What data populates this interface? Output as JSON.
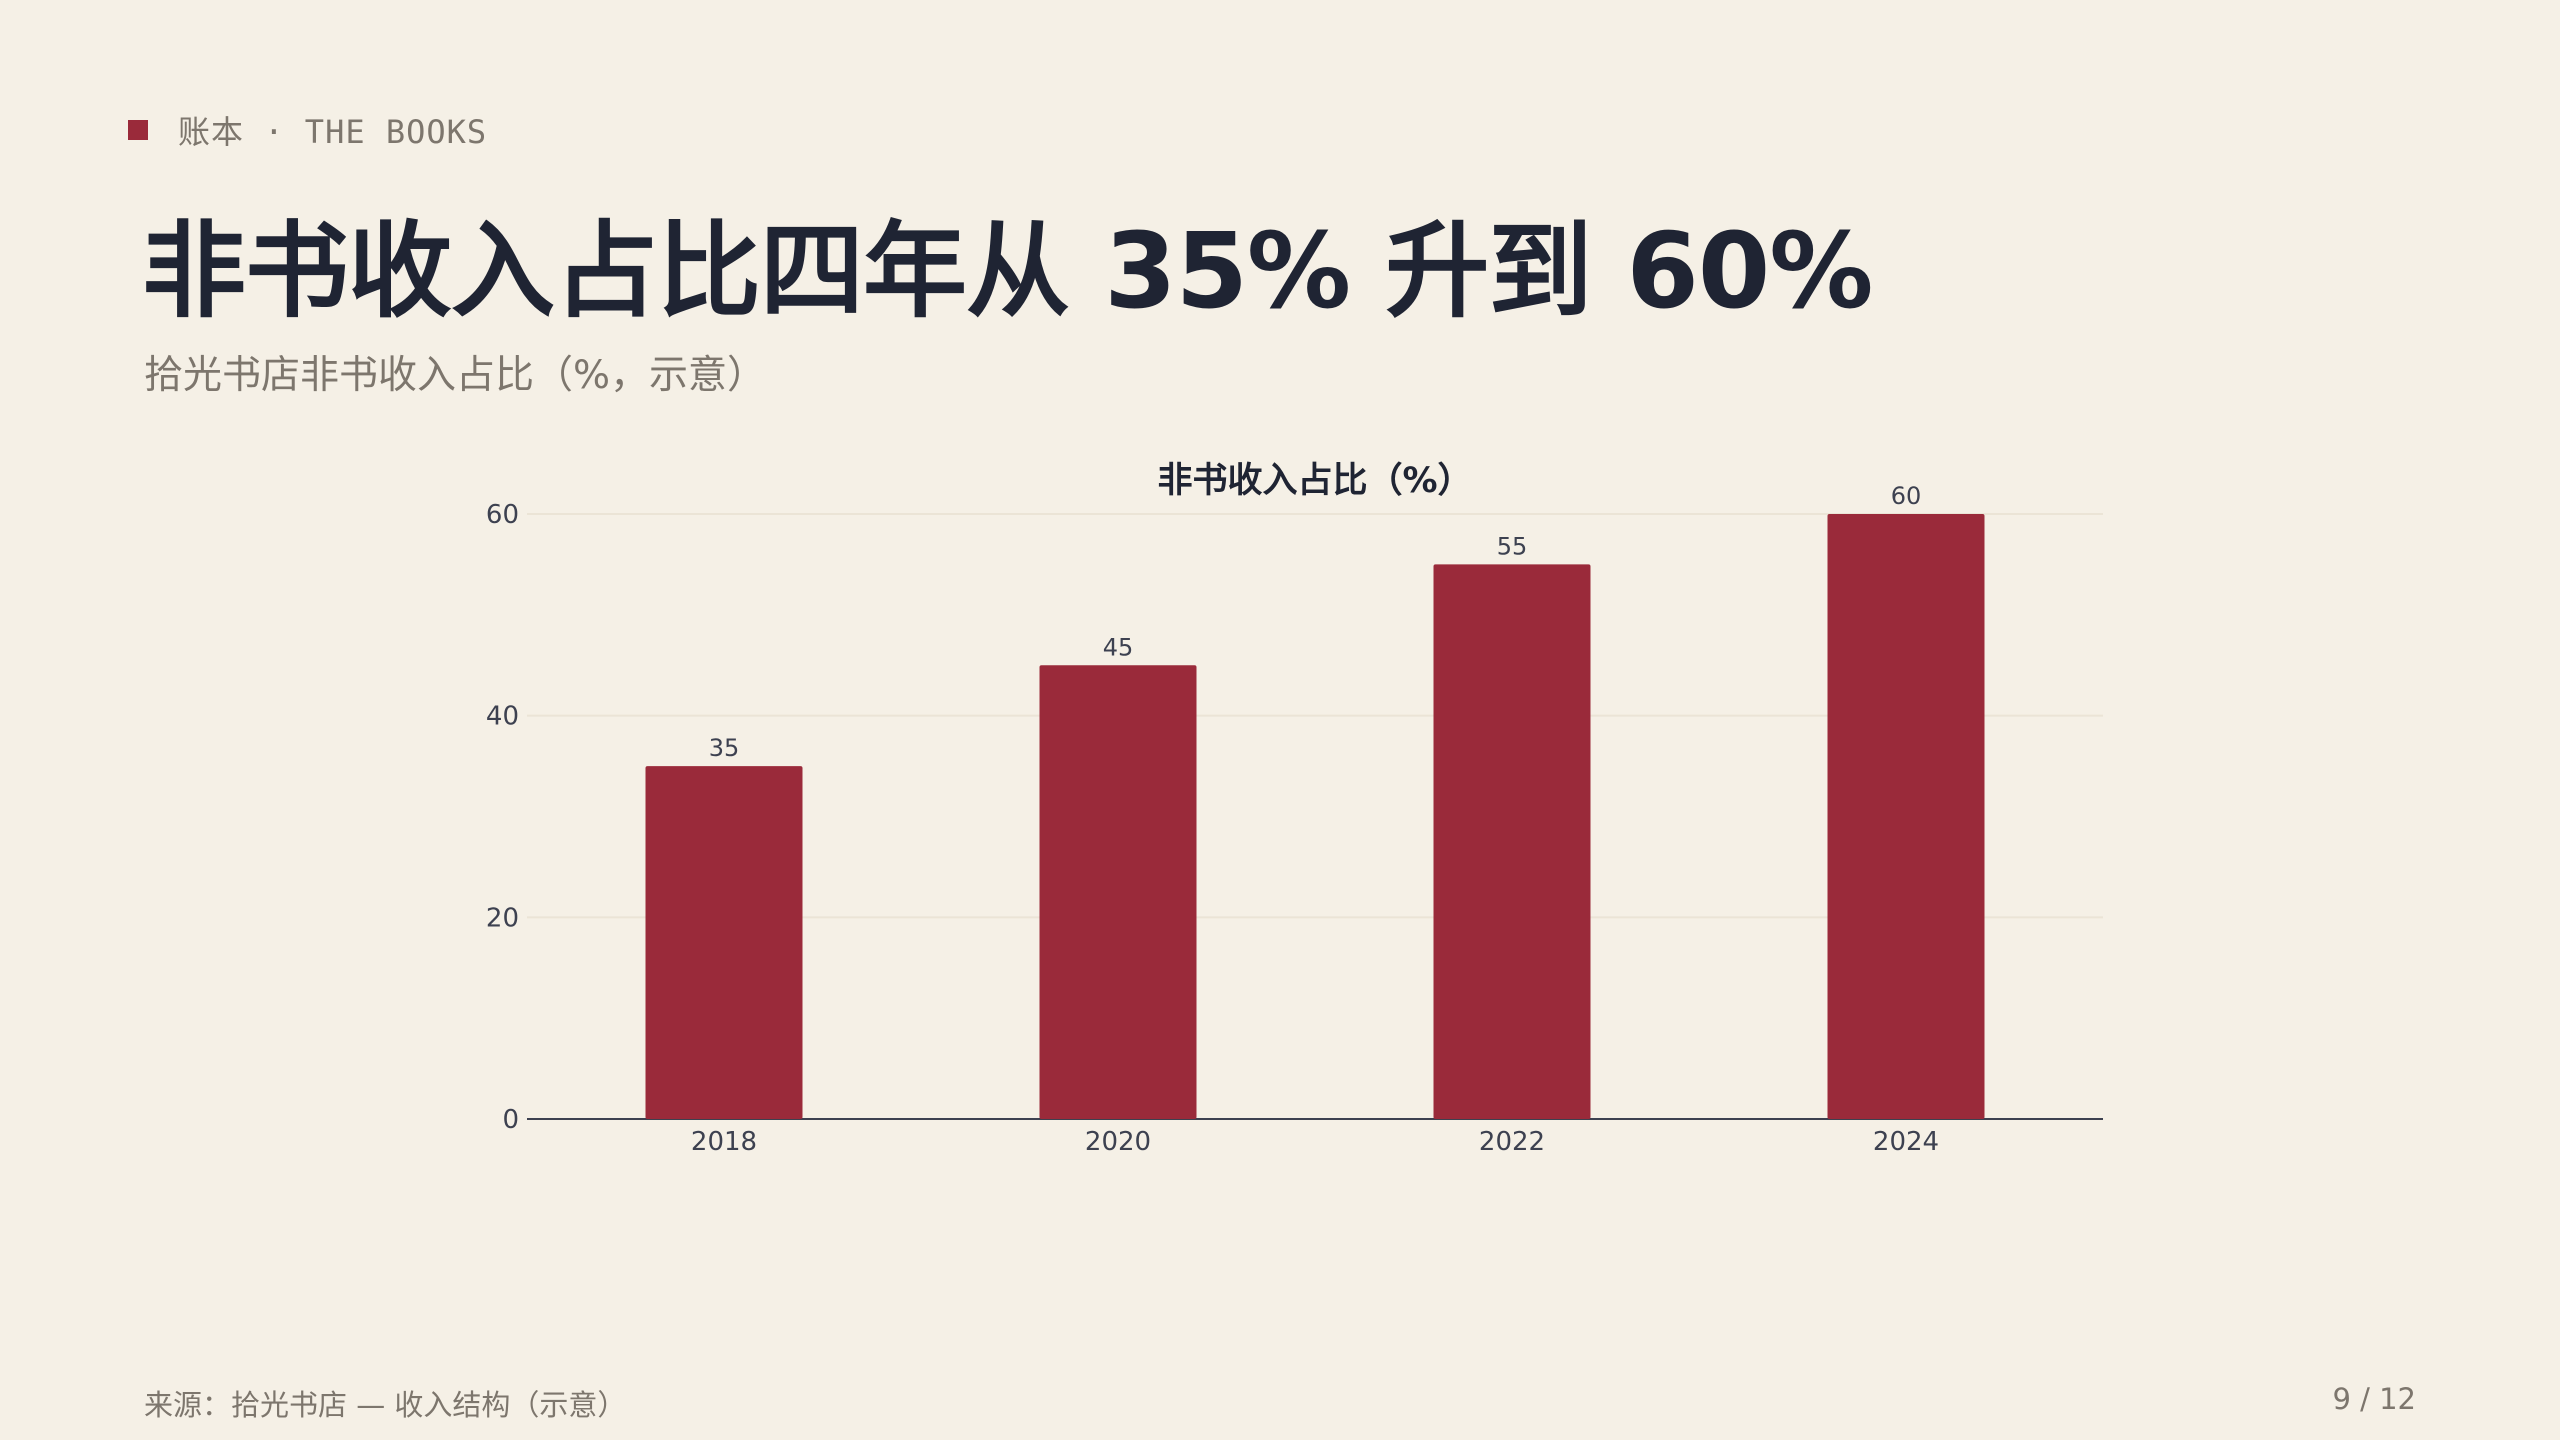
{
  "header": {
    "kicker": "账本 · THE BOOKS",
    "title": "非书收入占比四年从 35% 升到 60%",
    "subtitle": "拾光书店非书收入占比（%，示意）"
  },
  "footer": {
    "source": "来源：拾光书店 — 收入结构（示意）",
    "page": "9 / 12"
  },
  "colors": {
    "accent": "#9a2a3a",
    "background": "#f5f0e6",
    "text": "#1f2433",
    "muted": "#7d766d",
    "grid": "#ebe4d6",
    "axis": "#3d4150"
  },
  "chart_data": {
    "type": "bar",
    "title": "非书收入占比（%）",
    "categories": [
      "2018",
      "2020",
      "2022",
      "2024"
    ],
    "values": [
      35,
      45,
      55,
      60
    ],
    "xlabel": "",
    "ylabel": "",
    "ylim": [
      0,
      60
    ],
    "yticks": [
      0,
      20,
      40,
      60
    ],
    "grid": true,
    "legend": "none",
    "data_labels": true
  }
}
